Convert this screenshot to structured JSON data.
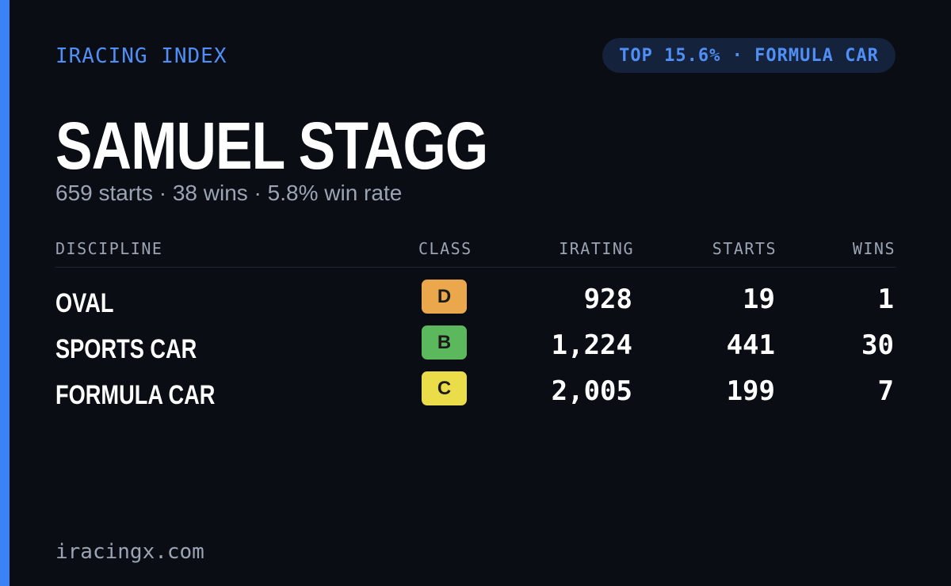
{
  "header": {
    "brand": "IRACING INDEX",
    "badge": "TOP 15.6% · FORMULA CAR"
  },
  "name": "SAMUEL STAGG",
  "summary": "659 starts · 38 wins · 5.8% win rate",
  "table": {
    "columns": [
      "DISCIPLINE",
      "CLASS",
      "IRATING",
      "STARTS",
      "WINS"
    ],
    "rows": [
      {
        "discipline": "OVAL",
        "class": "D",
        "class_color": "#eaa74c",
        "irating": "928",
        "starts": "19",
        "wins": "1"
      },
      {
        "discipline": "SPORTS CAR",
        "class": "B",
        "class_color": "#5cb85c",
        "irating": "1,224",
        "starts": "441",
        "wins": "30"
      },
      {
        "discipline": "FORMULA CAR",
        "class": "C",
        "class_color": "#ebdc4a",
        "irating": "2,005",
        "starts": "199",
        "wins": "7"
      }
    ]
  },
  "footer": "iracingx.com"
}
